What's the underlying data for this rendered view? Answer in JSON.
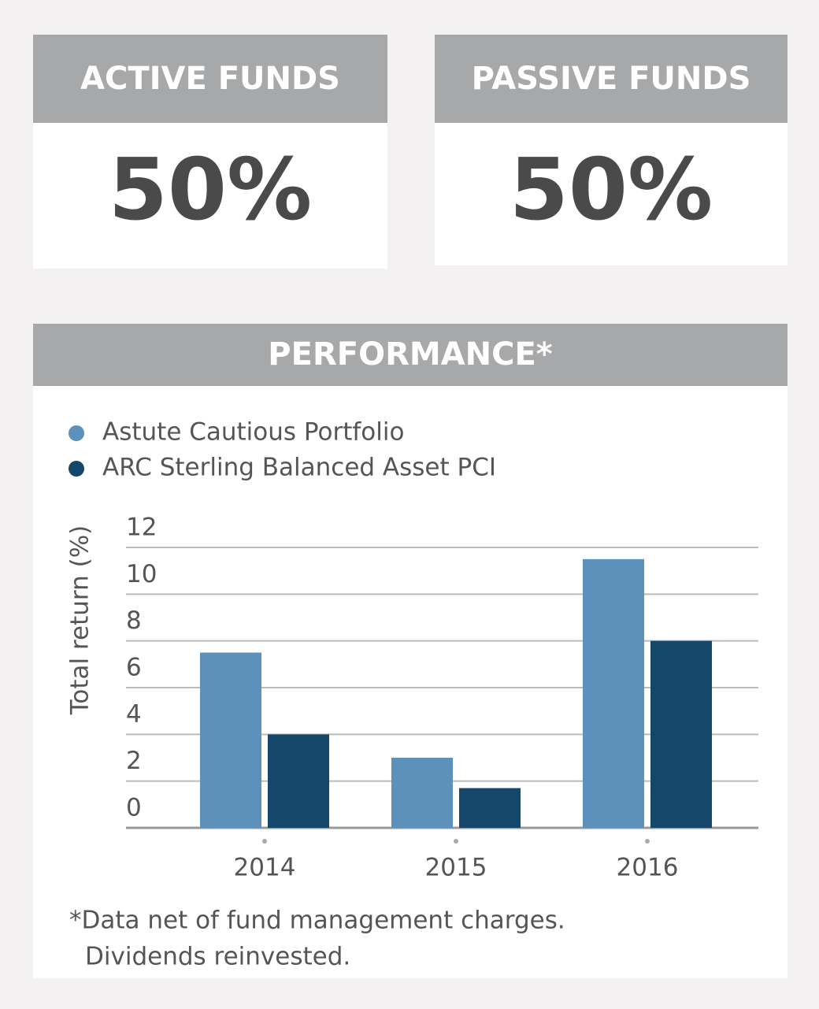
{
  "cards": [
    {
      "title": "ACTIVE FUNDS",
      "value": "50%"
    },
    {
      "title": "PASSIVE FUNDS",
      "value": "50%"
    }
  ],
  "performance": {
    "title": "PERFORMANCE*",
    "footnote": [
      "*Data net of fund management charges.",
      "Dividends reinvested."
    ]
  },
  "chart_data": {
    "type": "bar",
    "y_label": "Total return (%)",
    "categories": [
      "2014",
      "2015",
      "2016"
    ],
    "series": [
      {
        "name": "Astute Cautious Portfolio",
        "color": "#5b91bb",
        "values": [
          7.5,
          3.0,
          11.5
        ]
      },
      {
        "name": "ARC Sterling Balanced Asset PCI",
        "color": "#15476b",
        "values": [
          4.0,
          1.7,
          8.0
        ]
      }
    ],
    "ylim": [
      0,
      12
    ],
    "yticks": [
      0,
      2,
      4,
      6,
      8,
      10,
      12
    ],
    "grid": true
  }
}
